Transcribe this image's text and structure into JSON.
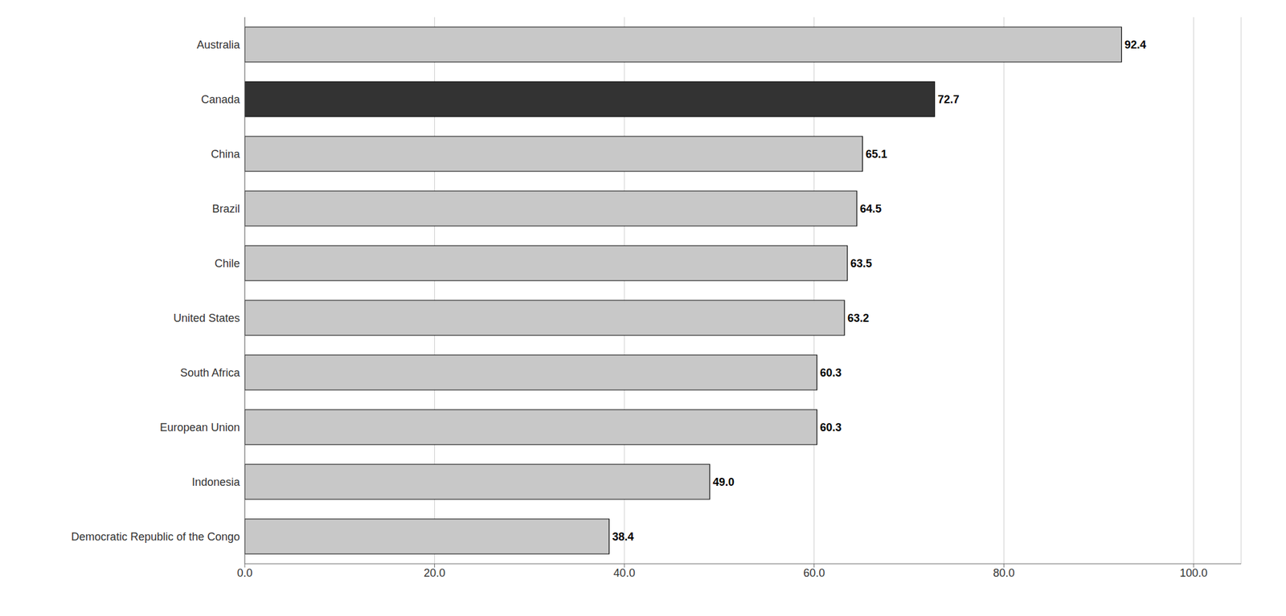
{
  "chart_data": {
    "type": "bar",
    "orientation": "horizontal",
    "categories": [
      "Democratic Republic of the Congo",
      "Indonesia",
      "European Union",
      "South Africa",
      "United States",
      "Chile",
      "Brazil",
      "China",
      "Canada",
      "Australia"
    ],
    "values": [
      38.4,
      49.0,
      60.3,
      60.3,
      63.2,
      63.5,
      64.5,
      65.1,
      72.7,
      92.4
    ],
    "value_labels": [
      "38.4",
      "49.0",
      "60.3",
      "60.3",
      "63.2",
      "63.5",
      "64.5",
      "65.1",
      "72.7",
      "92.4"
    ],
    "data_labels": true,
    "colors": [
      "#c8c8c8",
      "#c8c8c8",
      "#c8c8c8",
      "#c8c8c8",
      "#c8c8c8",
      "#c8c8c8",
      "#c8c8c8",
      "#c8c8c8",
      "#333333",
      "#c8c8c8"
    ],
    "xlim": [
      0.0,
      105.0
    ],
    "xticks": [
      {
        "value": 0,
        "label": "0.0"
      },
      {
        "value": 20,
        "label": "20.0"
      },
      {
        "value": 40,
        "label": "40.0"
      },
      {
        "value": 60,
        "label": "60.0"
      },
      {
        "value": 80,
        "label": "80.0"
      },
      {
        "value": 100,
        "label": "100.0"
      }
    ],
    "grid": true
  }
}
